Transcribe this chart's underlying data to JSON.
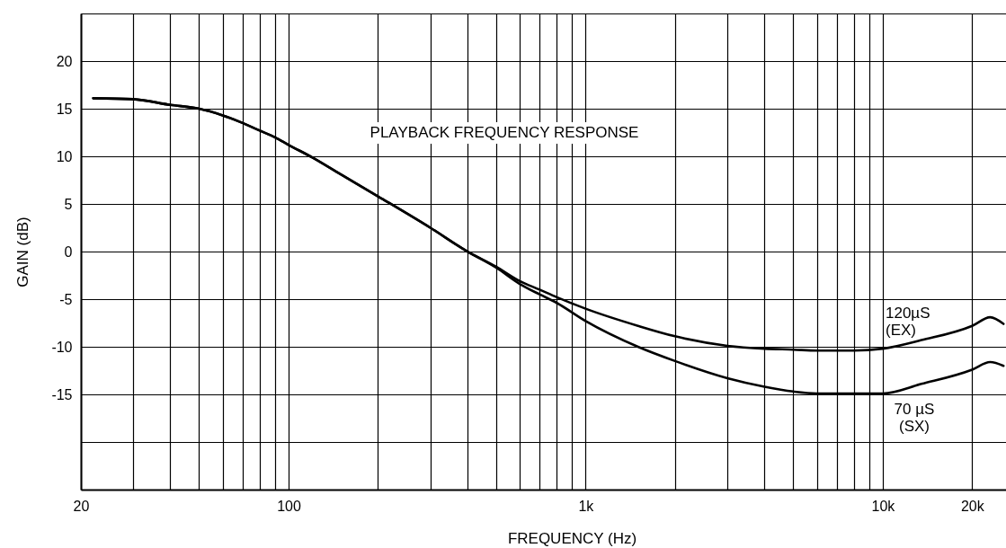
{
  "chart_data": {
    "type": "line",
    "title": "PLAYBACK FREQUENCY RESPONSE",
    "xlabel": "FREQUENCY (Hz)",
    "ylabel": "GAIN (dB)",
    "log": "x",
    "grid": true,
    "xlim": [
      20,
      26000
    ],
    "ylim": [
      -25,
      25
    ],
    "xticks": [
      20,
      {
        "value": 30,
        "label": null
      },
      {
        "value": 40,
        "label": null
      },
      {
        "value": 50,
        "label": null
      },
      {
        "value": 60,
        "label": null
      },
      {
        "value": 70,
        "label": null
      },
      {
        "value": 80,
        "label": null
      },
      {
        "value": 90,
        "label": null
      },
      100,
      {
        "value": 200,
        "label": null
      },
      {
        "value": 300,
        "label": null
      },
      {
        "value": 400,
        "label": null
      },
      {
        "value": 500,
        "label": null
      },
      {
        "value": 600,
        "label": null
      },
      {
        "value": 700,
        "label": null
      },
      {
        "value": 800,
        "label": null
      },
      {
        "value": 900,
        "label": null
      },
      {
        "value": 1000,
        "label": "1k"
      },
      {
        "value": 2000,
        "label": null
      },
      {
        "value": 3000,
        "label": null
      },
      {
        "value": 4000,
        "label": null
      },
      {
        "value": 5000,
        "label": null
      },
      {
        "value": 6000,
        "label": null
      },
      {
        "value": 7000,
        "label": null
      },
      {
        "value": 8000,
        "label": null
      },
      {
        "value": 9000,
        "label": null
      },
      {
        "value": 10000,
        "label": "10k"
      },
      {
        "value": 20000,
        "label": "20k"
      }
    ],
    "yticks": [
      {
        "value": -20,
        "label": null
      },
      -15,
      -10,
      -5,
      0,
      5,
      10,
      15,
      20,
      {
        "value": 25,
        "label": null
      }
    ],
    "x": [
      22,
      30,
      40,
      50,
      60,
      70,
      80,
      90,
      100,
      120,
      150,
      200,
      300,
      400,
      500,
      600,
      700,
      800,
      1000,
      1500,
      2000,
      3000,
      4000,
      5000,
      6000,
      8000,
      10000,
      13500,
      20000,
      23000,
      25500
    ],
    "series": [
      {
        "name": "120µS (EX)",
        "color": "#000000",
        "values": [
          16.1,
          16.0,
          15.4,
          15.0,
          14.3,
          13.5,
          12.7,
          12.0,
          11.2,
          9.9,
          8.1,
          5.8,
          2.5,
          0.0,
          -1.6,
          -3.1,
          -4.0,
          -4.8,
          -6.0,
          -7.8,
          -8.9,
          -9.9,
          -10.2,
          -10.3,
          -10.4,
          -10.4,
          -10.2,
          -9.3,
          -7.8,
          -6.9,
          -7.6
        ]
      },
      {
        "name": "70 µS (SX)",
        "color": "#000000",
        "values": [
          16.1,
          16.0,
          15.4,
          15.0,
          14.3,
          13.5,
          12.7,
          12.0,
          11.2,
          9.9,
          8.1,
          5.8,
          2.5,
          0.0,
          -1.7,
          -3.4,
          -4.5,
          -5.4,
          -7.3,
          -10.0,
          -11.5,
          -13.3,
          -14.2,
          -14.7,
          -14.9,
          -14.9,
          -14.9,
          -13.9,
          -12.4,
          -11.6,
          -12.0
        ]
      }
    ]
  }
}
